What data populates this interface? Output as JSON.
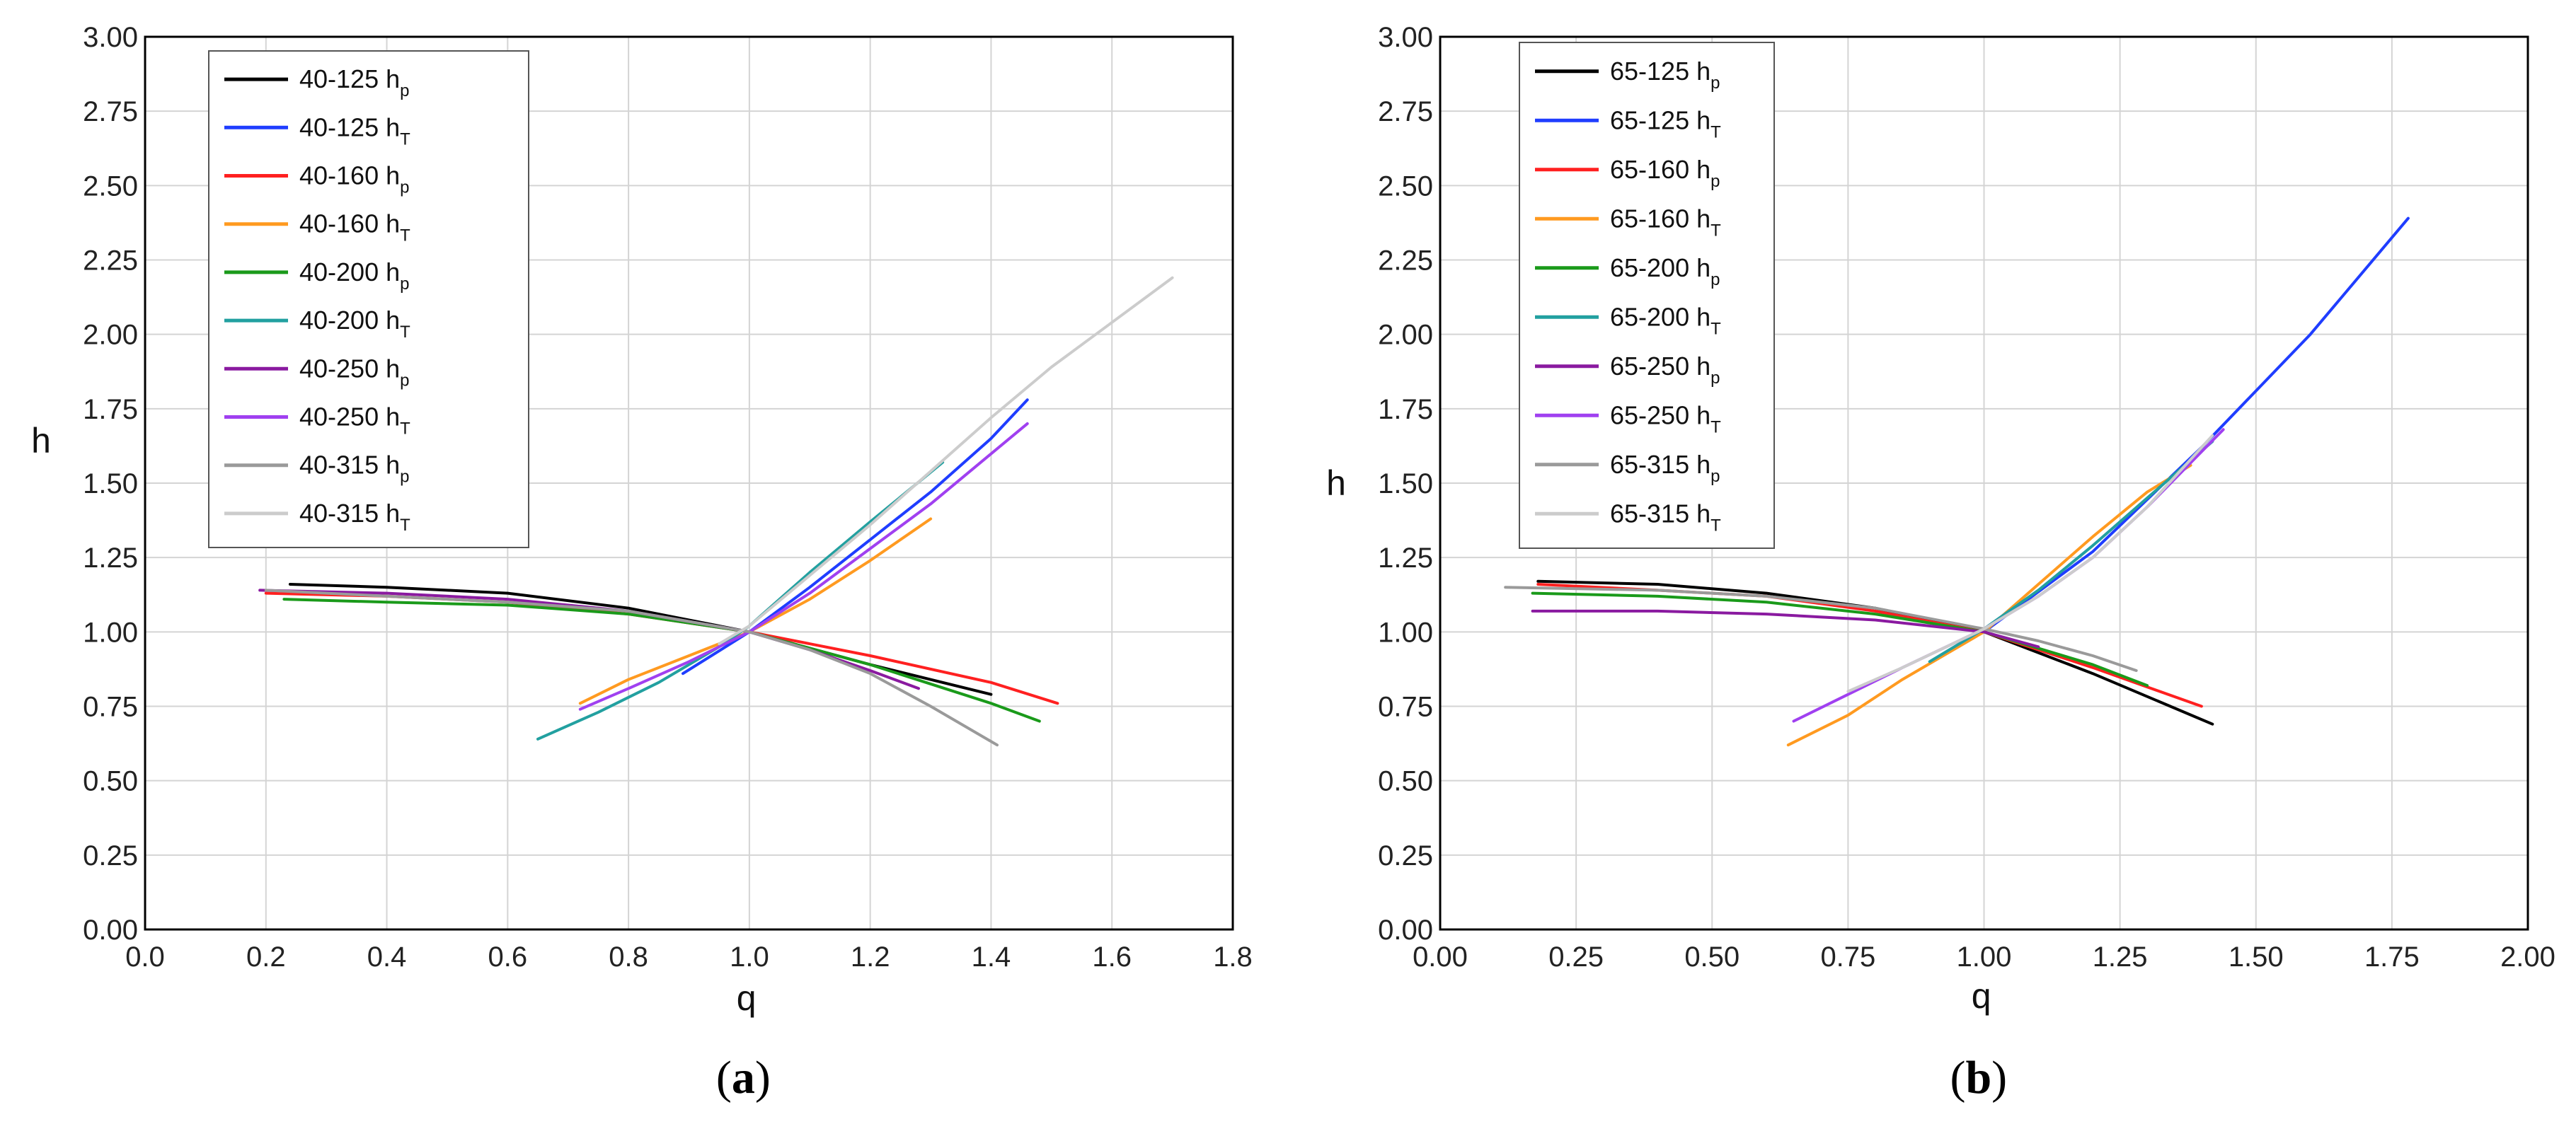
{
  "colors": {
    "background": "#ffffff",
    "grid": "#d4d4d4",
    "frame": "#000000"
  },
  "chart_data": [
    {
      "type": "line",
      "panel_label": {
        "open": "(",
        "letter": "a",
        "close": ")"
      },
      "xlabel": "q",
      "ylabel": "h",
      "xlim": [
        0.0,
        1.8
      ],
      "ylim": [
        0.0,
        3.0
      ],
      "xticks": [
        "0.0",
        "0.2",
        "0.4",
        "0.6",
        "0.8",
        "1.0",
        "1.2",
        "1.4",
        "1.6",
        "1.8"
      ],
      "yticks": [
        "0.00",
        "0.25",
        "0.50",
        "0.75",
        "1.00",
        "1.25",
        "1.50",
        "1.75",
        "2.00",
        "2.25",
        "2.50",
        "2.75",
        "3.00"
      ],
      "grid": true,
      "legend_position": "top-left",
      "series": [
        {
          "name": "40-125 h",
          "subscript": "p",
          "color": "#000000",
          "x": [
            0.24,
            0.4,
            0.6,
            0.8,
            1.0,
            1.2,
            1.4
          ],
          "y": [
            1.16,
            1.15,
            1.13,
            1.08,
            1.0,
            0.89,
            0.79
          ]
        },
        {
          "name": "40-125 h",
          "subscript": "T",
          "color": "#1f3dff",
          "x": [
            0.89,
            1.0,
            1.1,
            1.2,
            1.3,
            1.4,
            1.46
          ],
          "y": [
            0.86,
            1.0,
            1.15,
            1.31,
            1.47,
            1.65,
            1.78
          ]
        },
        {
          "name": "40-160 h",
          "subscript": "p",
          "color": "#ff2020",
          "x": [
            0.2,
            0.4,
            0.6,
            0.8,
            1.0,
            1.2,
            1.4,
            1.51
          ],
          "y": [
            1.13,
            1.12,
            1.1,
            1.06,
            1.0,
            0.92,
            0.83,
            0.76
          ]
        },
        {
          "name": "40-160 h",
          "subscript": "T",
          "color": "#ff9a20",
          "x": [
            0.72,
            0.8,
            0.9,
            1.0,
            1.1,
            1.2,
            1.3
          ],
          "y": [
            0.76,
            0.84,
            0.92,
            1.0,
            1.11,
            1.24,
            1.38
          ]
        },
        {
          "name": "40-200 h",
          "subscript": "p",
          "color": "#1a9a1a",
          "x": [
            0.23,
            0.4,
            0.6,
            0.8,
            1.0,
            1.2,
            1.4,
            1.48
          ],
          "y": [
            1.11,
            1.1,
            1.09,
            1.06,
            1.0,
            0.89,
            0.76,
            0.7
          ]
        },
        {
          "name": "40-200 h",
          "subscript": "T",
          "color": "#22a0a0",
          "x": [
            0.65,
            0.75,
            0.85,
            0.95,
            1.0,
            1.1,
            1.2,
            1.32
          ],
          "y": [
            0.64,
            0.73,
            0.83,
            0.95,
            1.02,
            1.2,
            1.37,
            1.57
          ]
        },
        {
          "name": "40-250 h",
          "subscript": "p",
          "color": "#8a1aa0",
          "x": [
            0.19,
            0.4,
            0.6,
            0.8,
            1.0,
            1.1,
            1.2,
            1.28
          ],
          "y": [
            1.14,
            1.13,
            1.11,
            1.07,
            1.0,
            0.94,
            0.87,
            0.81
          ]
        },
        {
          "name": "40-250 h",
          "subscript": "T",
          "color": "#a040f0",
          "x": [
            0.72,
            0.8,
            0.9,
            1.0,
            1.1,
            1.2,
            1.3,
            1.46
          ],
          "y": [
            0.74,
            0.81,
            0.9,
            1.0,
            1.13,
            1.28,
            1.43,
            1.7
          ]
        },
        {
          "name": "40-315 h",
          "subscript": "p",
          "color": "#9a9a9a",
          "x": [
            0.2,
            0.4,
            0.6,
            0.8,
            1.0,
            1.1,
            1.2,
            1.3,
            1.41
          ],
          "y": [
            1.14,
            1.12,
            1.1,
            1.07,
            1.0,
            0.94,
            0.86,
            0.75,
            0.62
          ]
        },
        {
          "name": "40-315 h",
          "subscript": "T",
          "color": "#cccccc",
          "x": [
            0.95,
            1.0,
            1.1,
            1.2,
            1.3,
            1.4,
            1.5,
            1.6,
            1.7
          ],
          "y": [
            0.96,
            1.02,
            1.19,
            1.36,
            1.54,
            1.72,
            1.89,
            2.04,
            2.19
          ]
        }
      ]
    },
    {
      "type": "line",
      "panel_label": {
        "open": "(",
        "letter": "b",
        "close": ")"
      },
      "xlabel": "q",
      "ylabel": "h",
      "xlim": [
        0.0,
        2.0
      ],
      "ylim": [
        0.0,
        3.0
      ],
      "xticks": [
        "0.00",
        "0.25",
        "0.50",
        "0.75",
        "1.00",
        "1.25",
        "1.50",
        "1.75",
        "2.00"
      ],
      "yticks": [
        "0.00",
        "0.25",
        "0.50",
        "0.75",
        "1.00",
        "1.25",
        "1.50",
        "1.75",
        "2.00",
        "2.25",
        "2.50",
        "2.75",
        "3.00"
      ],
      "grid": true,
      "legend_position": "top-left",
      "series": [
        {
          "name": "65-125 h",
          "subscript": "p",
          "color": "#000000",
          "x": [
            0.18,
            0.4,
            0.6,
            0.8,
            1.0,
            1.2,
            1.42
          ],
          "y": [
            1.17,
            1.16,
            1.13,
            1.08,
            1.0,
            0.86,
            0.69
          ]
        },
        {
          "name": "65-125 h",
          "subscript": "T",
          "color": "#1f3dff",
          "x": [
            1.0,
            1.2,
            1.4,
            1.6,
            1.78
          ],
          "y": [
            1.0,
            1.27,
            1.62,
            2.0,
            2.39
          ]
        },
        {
          "name": "65-160 h",
          "subscript": "p",
          "color": "#ff2020",
          "x": [
            0.18,
            0.4,
            0.6,
            0.8,
            1.0,
            1.2,
            1.4
          ],
          "y": [
            1.16,
            1.14,
            1.12,
            1.07,
            1.0,
            0.88,
            0.75
          ]
        },
        {
          "name": "65-160 h",
          "subscript": "T",
          "color": "#ff9a20",
          "x": [
            0.64,
            0.75,
            0.85,
            1.0,
            1.1,
            1.2,
            1.3,
            1.38
          ],
          "y": [
            0.62,
            0.72,
            0.84,
            1.0,
            1.16,
            1.32,
            1.47,
            1.56
          ]
        },
        {
          "name": "65-200 h",
          "subscript": "p",
          "color": "#1a9a1a",
          "x": [
            0.17,
            0.4,
            0.6,
            0.8,
            1.0,
            1.2,
            1.3
          ],
          "y": [
            1.13,
            1.12,
            1.1,
            1.06,
            1.0,
            0.89,
            0.82
          ]
        },
        {
          "name": "65-200 h",
          "subscript": "T",
          "color": "#22a0a0",
          "x": [
            0.9,
            1.0,
            1.1,
            1.2,
            1.3,
            1.42
          ],
          "y": [
            0.9,
            1.01,
            1.14,
            1.29,
            1.45,
            1.64
          ]
        },
        {
          "name": "65-250 h",
          "subscript": "p",
          "color": "#8a1aa0",
          "x": [
            0.17,
            0.4,
            0.6,
            0.8,
            1.0,
            1.1
          ],
          "y": [
            1.07,
            1.07,
            1.06,
            1.04,
            1.0,
            0.95
          ]
        },
        {
          "name": "65-250 h",
          "subscript": "T",
          "color": "#a040f0",
          "x": [
            0.65,
            0.75,
            0.85,
            1.0,
            1.1,
            1.2,
            1.3,
            1.44
          ],
          "y": [
            0.7,
            0.79,
            0.88,
            1.01,
            1.12,
            1.25,
            1.42,
            1.68
          ]
        },
        {
          "name": "65-315 h",
          "subscript": "p",
          "color": "#9a9a9a",
          "x": [
            0.12,
            0.4,
            0.6,
            0.8,
            1.0,
            1.1,
            1.2,
            1.28
          ],
          "y": [
            1.15,
            1.14,
            1.12,
            1.08,
            1.01,
            0.97,
            0.92,
            0.87
          ]
        },
        {
          "name": "65-315 h",
          "subscript": "T",
          "color": "#cccccc",
          "x": [
            0.75,
            0.85,
            1.0,
            1.1,
            1.2,
            1.3,
            1.42
          ],
          "y": [
            0.8,
            0.88,
            1.01,
            1.12,
            1.25,
            1.42,
            1.66
          ]
        }
      ]
    }
  ]
}
